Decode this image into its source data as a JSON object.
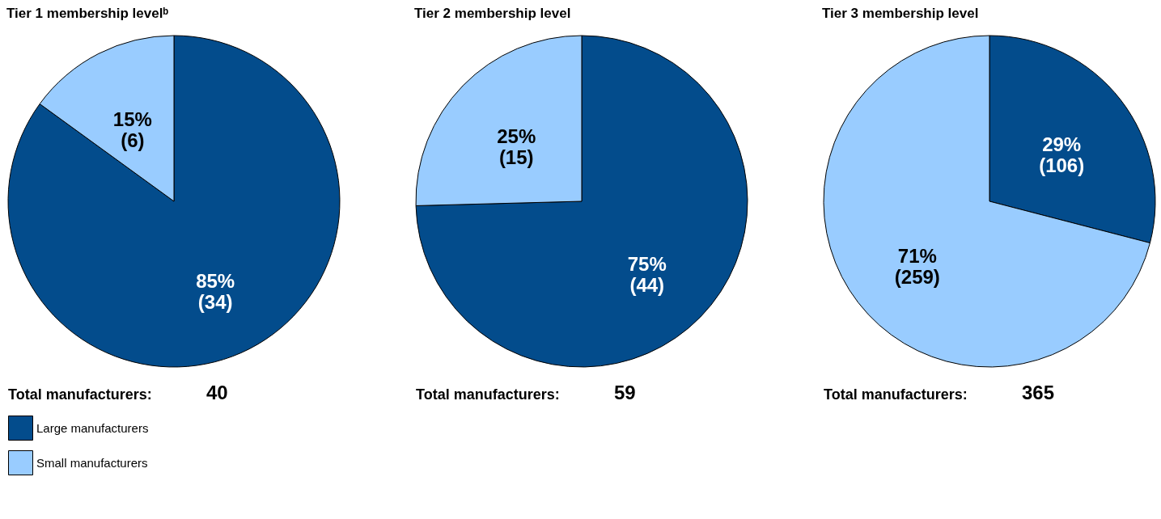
{
  "chart_data": [
    {
      "type": "pie",
      "title": "Tier 1 membership levelᵇ",
      "categories": [
        "Large manufacturers",
        "Small manufacturers"
      ],
      "values": [
        34,
        6
      ],
      "colors": [
        "#034c8c",
        "#99ccff"
      ],
      "value_labels": [
        "85%\n(34)",
        "15%\n(6)"
      ],
      "annotations": [
        "Total manufacturers:",
        "40"
      ],
      "legend": "bottom"
    },
    {
      "type": "pie",
      "title": "Tier 2 membership level",
      "categories": [
        null,
        null
      ],
      "values": [
        44,
        15
      ],
      "colors": [
        "#034c8c",
        "#99ccff"
      ],
      "value_labels": [
        "75%\n(44)",
        "25%\n(15)"
      ],
      "annotations": [
        "Total manufacturers:",
        "59"
      ]
    },
    {
      "type": "pie",
      "title": "Tier 3 membership level",
      "categories": [
        null,
        null
      ],
      "values": [
        106,
        259
      ],
      "colors": [
        "#034c8c",
        "#99ccff"
      ],
      "value_labels": [
        "29%\n(106)",
        "71%\n(259)"
      ],
      "annotations": [
        "Total manufacturers:",
        "365"
      ]
    }
  ]
}
